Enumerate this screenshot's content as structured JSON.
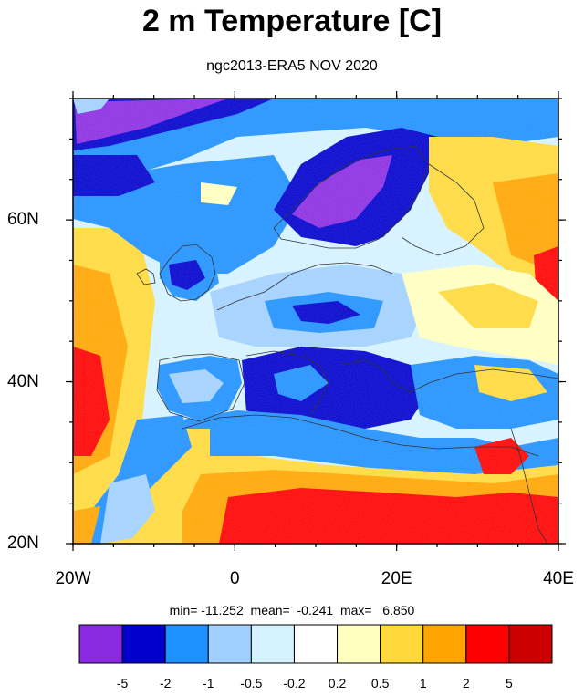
{
  "title": "2 m Temperature [C]",
  "subtitle": "ngc2013-ERA5 NOV 2020",
  "map": {
    "type": "heatmap",
    "lon_range": [
      -20,
      40
    ],
    "lat_range": [
      20,
      75
    ],
    "x_ticks": [
      {
        "value": -20,
        "label": "20W"
      },
      {
        "value": 0,
        "label": "0"
      },
      {
        "value": 20,
        "label": "20E"
      },
      {
        "value": 40,
        "label": "40E"
      }
    ],
    "y_ticks": [
      {
        "value": 60,
        "label": "60N"
      },
      {
        "value": 40,
        "label": "40N"
      },
      {
        "value": 20,
        "label": "20N"
      }
    ]
  },
  "stats": {
    "min": "min= -11.252",
    "mean": "mean=  -0.241",
    "max": "max=   6.850"
  },
  "colorbar": {
    "levels": [
      "-5",
      "-2",
      "-1",
      "-0.5",
      "-0.2",
      "0.2",
      "0.5",
      "1",
      "2",
      "5"
    ],
    "colors": [
      "#8a2be2",
      "#0000cd",
      "#1e90ff",
      "#a0d0ff",
      "#d4f2ff",
      "#ffffff",
      "#ffffc0",
      "#ffd93a",
      "#ffa500",
      "#ff0000",
      "#cc0000"
    ]
  }
}
